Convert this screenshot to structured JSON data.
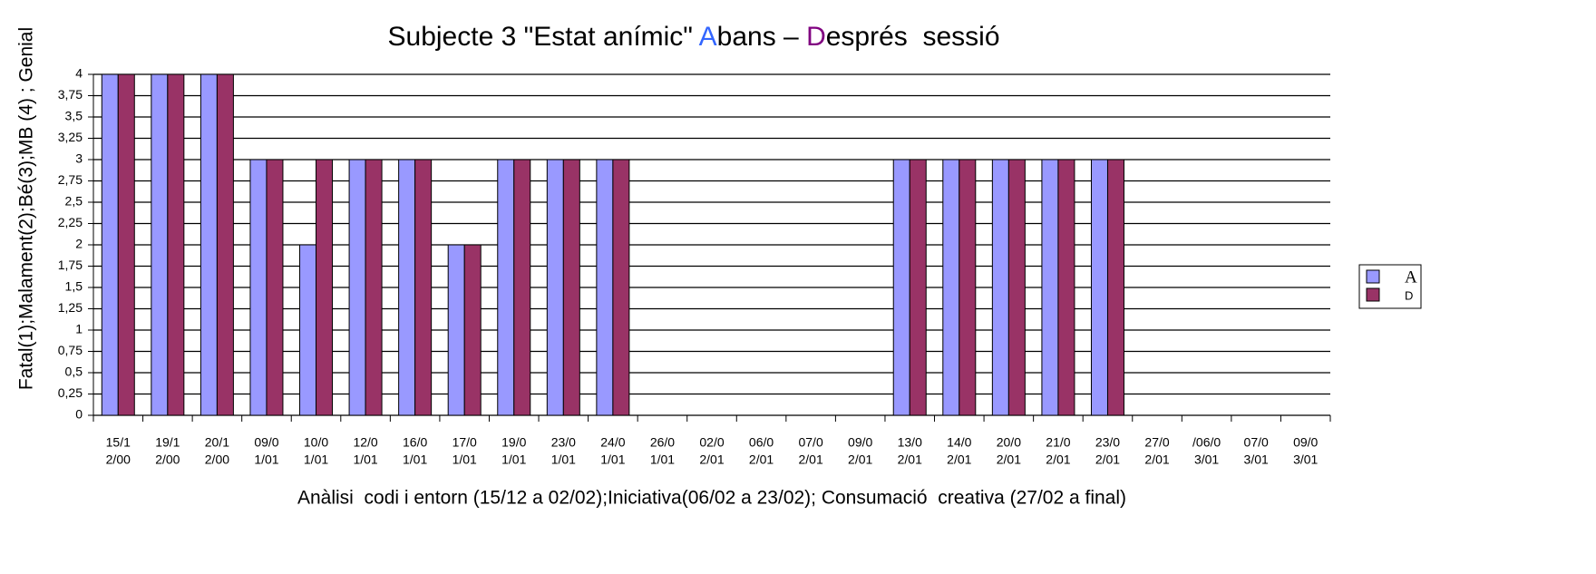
{
  "chart_data": {
    "type": "bar",
    "title_parts": [
      "Subjecte 3 \"Estat anímic\" ",
      "A",
      "bans – ",
      "D",
      "esprés  sessió"
    ],
    "title_colors": [
      "#000000",
      "#3366ff",
      "#000000",
      "#800080",
      "#000000"
    ],
    "y_label": "Fatal(1);Malament(2);Bé(3);MB (4) ; Genial",
    "x_label": "Anàlisi  codi i entorn (15/12 a 02/02);Iniciativa(06/02 a 23/02); Consumació  creativa (27/02 a final)",
    "categories": [
      [
        "15/1",
        "2/00"
      ],
      [
        "19/1",
        "2/00"
      ],
      [
        "20/1",
        "2/00"
      ],
      [
        "09/0",
        "1/01"
      ],
      [
        "10/0",
        "1/01"
      ],
      [
        "12/0",
        "1/01"
      ],
      [
        "16/0",
        "1/01"
      ],
      [
        "17/0",
        "1/01"
      ],
      [
        "19/0",
        "1/01"
      ],
      [
        "23/0",
        "1/01"
      ],
      [
        "24/0",
        "1/01"
      ],
      [
        "26/0",
        "1/01"
      ],
      [
        "02/0",
        "2/01"
      ],
      [
        "06/0",
        "2/01"
      ],
      [
        "07/0",
        "2/01"
      ],
      [
        "09/0",
        "2/01"
      ],
      [
        "13/0",
        "2/01"
      ],
      [
        "14/0",
        "2/01"
      ],
      [
        "20/0",
        "2/01"
      ],
      [
        "21/0",
        "2/01"
      ],
      [
        "23/0",
        "2/01"
      ],
      [
        "27/0",
        "2/01"
      ],
      [
        "/06/0",
        "3/01"
      ],
      [
        "07/0",
        "3/01"
      ],
      [
        "09/0",
        "3/01"
      ]
    ],
    "series": [
      {
        "name": "A",
        "color": "#9999ff",
        "label_color": "#3366ff",
        "values": [
          4,
          4,
          4,
          3,
          2,
          3,
          3,
          2,
          3,
          3,
          3,
          0,
          0,
          0,
          0,
          0,
          3,
          3,
          3,
          3,
          3,
          0,
          0,
          0,
          0
        ]
      },
      {
        "name": "D",
        "color": "#993366",
        "label_color": "#000000",
        "values": [
          4,
          4,
          4,
          3,
          3,
          3,
          3,
          2,
          3,
          3,
          3,
          0,
          0,
          0,
          0,
          0,
          3,
          3,
          3,
          3,
          3,
          0,
          0,
          0,
          0
        ]
      }
    ],
    "ylim": [
      0,
      4
    ],
    "yticks": [
      0,
      {
        "value": 0.25,
        "label": "0,25"
      },
      {
        "value": 0.5,
        "label": "0,5"
      },
      {
        "value": 0.75,
        "label": "0,75"
      },
      1,
      {
        "value": 1.25,
        "label": "1,25"
      },
      {
        "value": 1.5,
        "label": "1,5"
      },
      {
        "value": 1.75,
        "label": "1,75"
      },
      2,
      {
        "value": 2.25,
        "label": "2,25"
      },
      {
        "value": 2.5,
        "label": "2,5"
      },
      {
        "value": 2.75,
        "label": "2,75"
      },
      3,
      {
        "value": 3.25,
        "label": "3,25"
      },
      {
        "value": 3.5,
        "label": "3,5"
      },
      {
        "value": 3.75,
        "label": "3,75"
      },
      4
    ],
    "grid": true,
    "legend": "right"
  }
}
